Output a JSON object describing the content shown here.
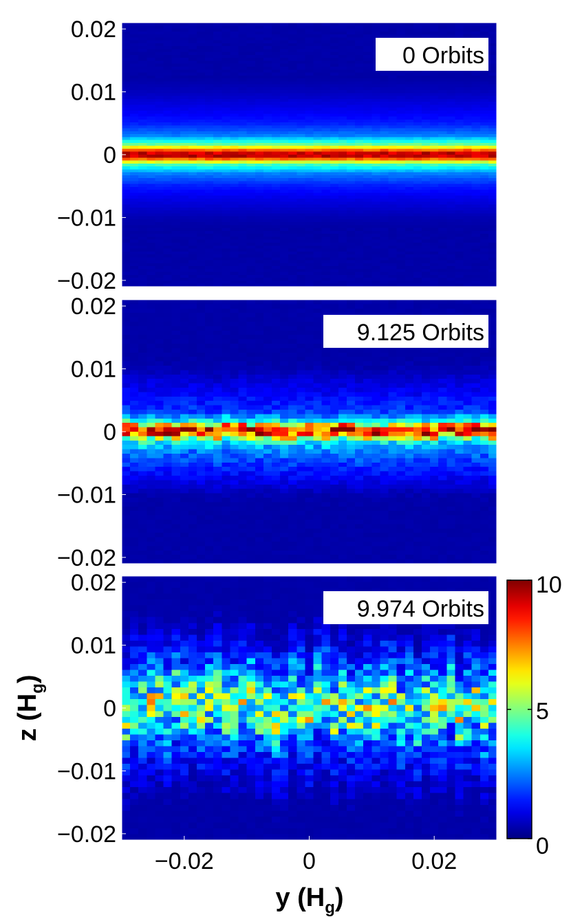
{
  "chart_data": {
    "type": "heatmap",
    "xlabel": "y",
    "xlabel_unit_main": "H",
    "xlabel_unit_sub": "g",
    "ylabel": "z",
    "ylabel_unit_main": "H",
    "ylabel_unit_sub": "g",
    "xlim": [
      -0.03,
      0.03
    ],
    "ylim": [
      -0.021,
      0.021
    ],
    "x_ticks": [
      -0.02,
      0,
      0.02
    ],
    "x_tick_labels": [
      "−0.02",
      "0",
      "0.02"
    ],
    "y_ticks": [
      0.02,
      0.01,
      0,
      -0.01,
      -0.02
    ],
    "y_tick_labels": [
      "0.02",
      "0.01",
      "0",
      "−0.01",
      "−0.02"
    ],
    "colorbar": {
      "min": 0,
      "max": 10,
      "ticks": [
        0,
        5,
        10
      ],
      "tick_labels": [
        "0",
        "5",
        "10"
      ],
      "colormap": "jet"
    },
    "panels": [
      {
        "annotation": "0 Orbits",
        "profile": [
          {
            "z": 0.01,
            "value": 0.6
          },
          {
            "z": 0.007,
            "value": 1.1
          },
          {
            "z": 0.005,
            "value": 1.5
          },
          {
            "z": 0.003,
            "value": 2.5
          },
          {
            "z": 0.0015,
            "value": 5.0
          },
          {
            "z": 0.0005,
            "value": 8.5
          },
          {
            "z": 0.0,
            "value": 10.0
          },
          {
            "z": -0.0005,
            "value": 8.5
          },
          {
            "z": -0.0015,
            "value": 4.5
          },
          {
            "z": -0.003,
            "value": 2.5
          },
          {
            "z": -0.005,
            "value": 1.5
          },
          {
            "z": -0.007,
            "value": 1.0
          },
          {
            "z": -0.01,
            "value": 0.5
          }
        ]
      },
      {
        "annotation": "9.125 Orbits",
        "profile": [
          {
            "z": 0.01,
            "value": 0.5
          },
          {
            "z": 0.006,
            "value": 1.2
          },
          {
            "z": 0.003,
            "value": 1.8
          },
          {
            "z": 0.0015,
            "value": 4.0
          },
          {
            "z": 0.0005,
            "value": 8.5
          },
          {
            "z": 0.0,
            "value": 9.0
          },
          {
            "z": -0.0005,
            "value": 8.0
          },
          {
            "z": -0.0015,
            "value": 4.0
          },
          {
            "z": -0.003,
            "value": 2.5
          },
          {
            "z": -0.005,
            "value": 1.8
          },
          {
            "z": -0.008,
            "value": 1.0
          },
          {
            "z": -0.01,
            "value": 0.5
          }
        ]
      },
      {
        "annotation": "9.974 Orbits",
        "profile": [
          {
            "z": 0.012,
            "value": 0.6
          },
          {
            "z": 0.01,
            "value": 1.2
          },
          {
            "z": 0.007,
            "value": 1.8
          },
          {
            "z": 0.004,
            "value": 3.0
          },
          {
            "z": 0.002,
            "value": 4.5
          },
          {
            "z": 0.0,
            "value": 5.0
          },
          {
            "z": -0.002,
            "value": 4.5
          },
          {
            "z": -0.004,
            "value": 3.0
          },
          {
            "z": -0.006,
            "value": 2.0
          },
          {
            "z": -0.009,
            "value": 1.3
          },
          {
            "z": -0.012,
            "value": 0.8
          },
          {
            "z": -0.015,
            "value": 0.4
          }
        ]
      }
    ]
  }
}
